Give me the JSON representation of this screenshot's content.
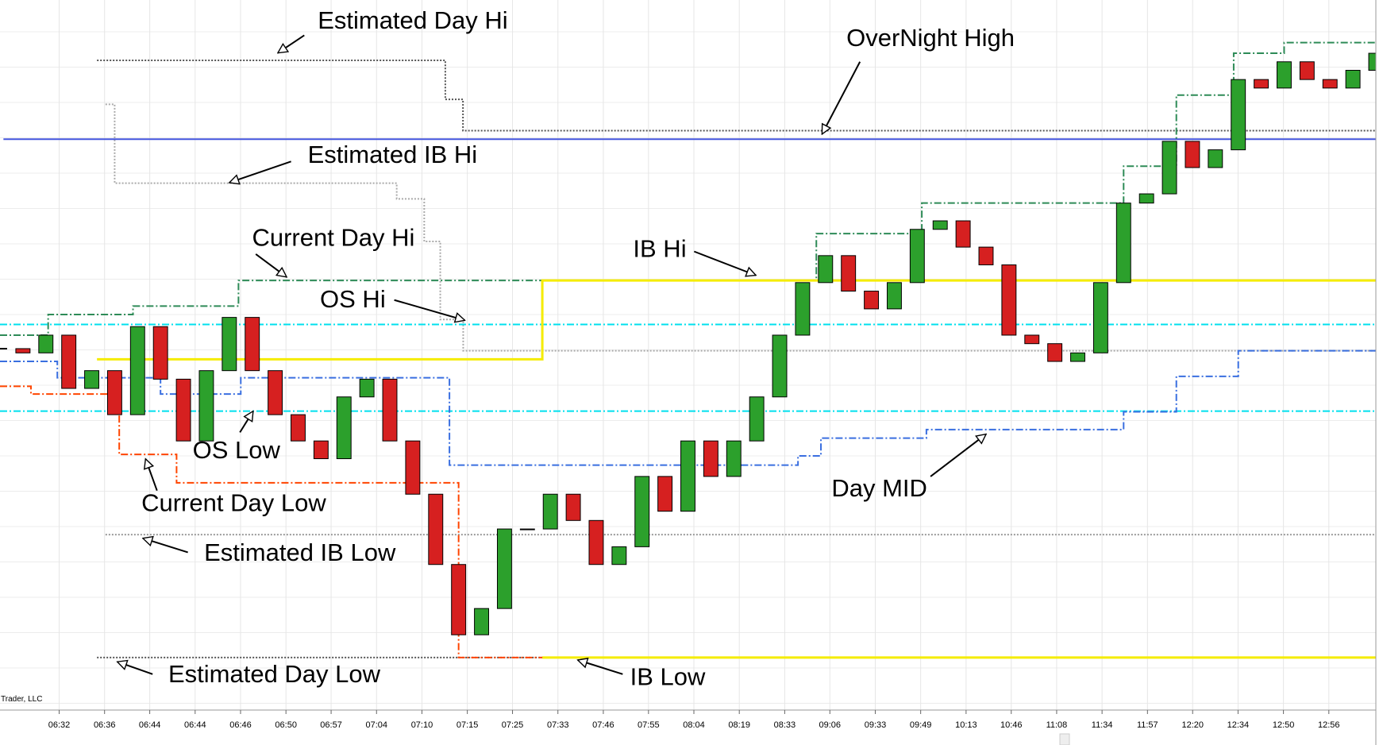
{
  "chart_data": {
    "type": "candlestick",
    "values": [
      50.9,
      50.3,
      52.8,
      45.3,
      47.8,
      41.6,
      54.0,
      46.6,
      37.9,
      47.8,
      55.3,
      47.8,
      41.6,
      37.9,
      35.4,
      44.1,
      46.6,
      37.9,
      30.4,
      20.5,
      10.6,
      14.3,
      25.5,
      25.5,
      30.4,
      26.7,
      20.5,
      23.0,
      32.9,
      28.0,
      37.9,
      32.9,
      37.9,
      44.1,
      52.8,
      60.2,
      64.0,
      59.0,
      56.5,
      60.2,
      67.7,
      68.9,
      65.2,
      62.7,
      52.8,
      51.6,
      49.1,
      50.3,
      60.2,
      71.4,
      72.7,
      80.1,
      76.4,
      78.9,
      88.8,
      87.6,
      91.3,
      88.8,
      87.6,
      90.1,
      92.5
    ],
    "up_color": "#2ca02c",
    "down_color": "#d62020",
    "xlim": [
      0,
      60
    ],
    "ylim": [
      0,
      100
    ],
    "xticks": [
      {
        "value": 2.58,
        "label": "06:32"
      },
      {
        "value": 4.56,
        "label": "06:36"
      },
      {
        "value": 6.53,
        "label": "06:44"
      },
      {
        "value": 8.51,
        "label": "06:44"
      },
      {
        "value": 10.49,
        "label": "06:46"
      },
      {
        "value": 12.47,
        "label": "06:50"
      },
      {
        "value": 14.44,
        "label": "06:57"
      },
      {
        "value": 16.42,
        "label": "07:04"
      },
      {
        "value": 18.4,
        "label": "07:10"
      },
      {
        "value": 20.38,
        "label": "07:15"
      },
      {
        "value": 22.35,
        "label": "07:25"
      },
      {
        "value": 24.33,
        "label": "07:33"
      },
      {
        "value": 26.31,
        "label": "07:46"
      },
      {
        "value": 28.28,
        "label": "07:55"
      },
      {
        "value": 30.26,
        "label": "08:04"
      },
      {
        "value": 32.24,
        "label": "08:19"
      },
      {
        "value": 34.22,
        "label": "08:33"
      },
      {
        "value": 36.19,
        "label": "09:06"
      },
      {
        "value": 38.17,
        "label": "09:33"
      },
      {
        "value": 40.15,
        "label": "09:49"
      },
      {
        "value": 42.13,
        "label": "10:13"
      },
      {
        "value": 44.1,
        "label": "10:46"
      },
      {
        "value": 46.08,
        "label": "11:08"
      },
      {
        "value": 48.06,
        "label": "11:34"
      },
      {
        "value": 50.04,
        "label": "11:57"
      },
      {
        "value": 52.01,
        "label": "12:20"
      },
      {
        "value": 53.99,
        "label": "12:34"
      },
      {
        "value": 55.97,
        "label": "12:50"
      },
      {
        "value": 57.95,
        "label": "12:56"
      }
    ],
    "grid": true,
    "levels": [
      {
        "color": "#555555",
        "style": "dotted",
        "x": [
          4.23,
          19.42,
          20.19
        ],
        "values": [
          91.5,
          86.0,
          81.6
        ]
      },
      {
        "color": "#555555",
        "style": "dotted",
        "x": [
          4.23
        ],
        "values": [
          7.4
        ]
      },
      {
        "color": "#aaaaaa",
        "style": "dotted",
        "x": [
          4.6,
          5.0,
          17.3,
          18.5,
          19.2,
          20.2
        ],
        "values": [
          85.3,
          74.2,
          72.0,
          66.0,
          55.0,
          50.6
        ]
      },
      {
        "color": "#999999",
        "style": "dotted",
        "x": [
          4.6
        ],
        "values": [
          24.7
        ]
      },
      {
        "color": "#4455dd",
        "style": "solid",
        "x": [
          0.15
        ],
        "values": [
          80.4
        ]
      },
      {
        "color": "#2e8b57",
        "style": "dashdot",
        "x": [
          0,
          2.1,
          5.8,
          10.4,
          35.6,
          40.2,
          49.0,
          51.3,
          53.8,
          56.0
        ],
        "values": [
          52.8,
          55.7,
          56.9,
          60.5,
          67.1,
          71.4,
          76.6,
          86.6,
          92.5,
          94.0
        ]
      },
      {
        "color": "#ff4500",
        "style": "dashdot",
        "x": [
          0,
          1.35,
          5.2,
          7.7,
          20.0
        ],
        "values": [
          45.6,
          44.5,
          36.0,
          32.0,
          7.4
        ]
      },
      {
        "color": "#00e0ee",
        "style": "dashdot",
        "x": [
          0
        ],
        "values": [
          54.3
        ]
      },
      {
        "color": "#00e0ee",
        "style": "dashdot",
        "x": [
          0
        ],
        "values": [
          42.1
        ]
      },
      {
        "color": "#f5ec00",
        "style": "thick",
        "x": [
          4.23,
          23.65
        ],
        "values": [
          49.4,
          60.5
        ]
      },
      {
        "color": "#f5ec00",
        "style": "thick",
        "x": [
          23.65
        ],
        "values": [
          7.4
        ]
      },
      {
        "color": "#3a6fe0",
        "style": "dashdot",
        "x": [
          0,
          2.5,
          7.0,
          10.5,
          19.6,
          34.8,
          35.8,
          40.4,
          49.0,
          51.3,
          54.0
        ],
        "values": [
          49.1,
          46.8,
          44.5,
          46.8,
          34.5,
          35.8,
          38.3,
          39.5,
          42.0,
          47.0,
          50.6
        ]
      }
    ],
    "annotations": [
      "Estimated Day Hi",
      "OverNight High",
      "Estimated IB Hi",
      "Current Day Hi",
      "OS Hi",
      "IB Hi",
      "OS Low",
      "Current Day Low",
      "Estimated IB Low",
      "Day MID",
      "Estimated Day Low",
      "IB Low"
    ],
    "watermark": "Trader, LLC"
  }
}
